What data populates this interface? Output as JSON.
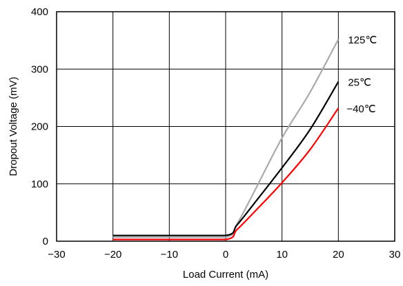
{
  "chart_data": {
    "type": "line",
    "title": "",
    "xlabel": "Load Current (mA)",
    "ylabel": "Dropout Voltage (mV)",
    "xlim": [
      -30,
      30
    ],
    "ylim": [
      0,
      400
    ],
    "x_ticks": [
      -30,
      -20,
      -10,
      0,
      10,
      20,
      30
    ],
    "x_tick_labels": [
      "−30",
      "−20",
      "−10",
      "0",
      "10",
      "20",
      "30"
    ],
    "y_ticks": [
      0,
      100,
      200,
      300,
      400
    ],
    "y_tick_labels": [
      "0",
      "100",
      "200",
      "300",
      "400"
    ],
    "grid": true,
    "legend": "inline labels at right end of curves",
    "series": [
      {
        "name": "125℃",
        "color": "#aaaaaa",
        "x": [
          -20,
          -10,
          0,
          2,
          5,
          10,
          15,
          20
        ],
        "y": [
          7,
          7,
          7,
          30,
          85,
          180,
          260,
          352
        ]
      },
      {
        "name": "25℃",
        "color": "#000000",
        "x": [
          -20,
          -10,
          0,
          2,
          5,
          10,
          15,
          20
        ],
        "y": [
          10,
          10,
          10,
          28,
          65,
          128,
          195,
          278
        ]
      },
      {
        "name": "−40℃",
        "color": "#ff0000",
        "x": [
          -20,
          -10,
          0,
          2,
          5,
          10,
          15,
          20
        ],
        "y": [
          3,
          3,
          3,
          20,
          50,
          102,
          160,
          232
        ]
      }
    ]
  }
}
